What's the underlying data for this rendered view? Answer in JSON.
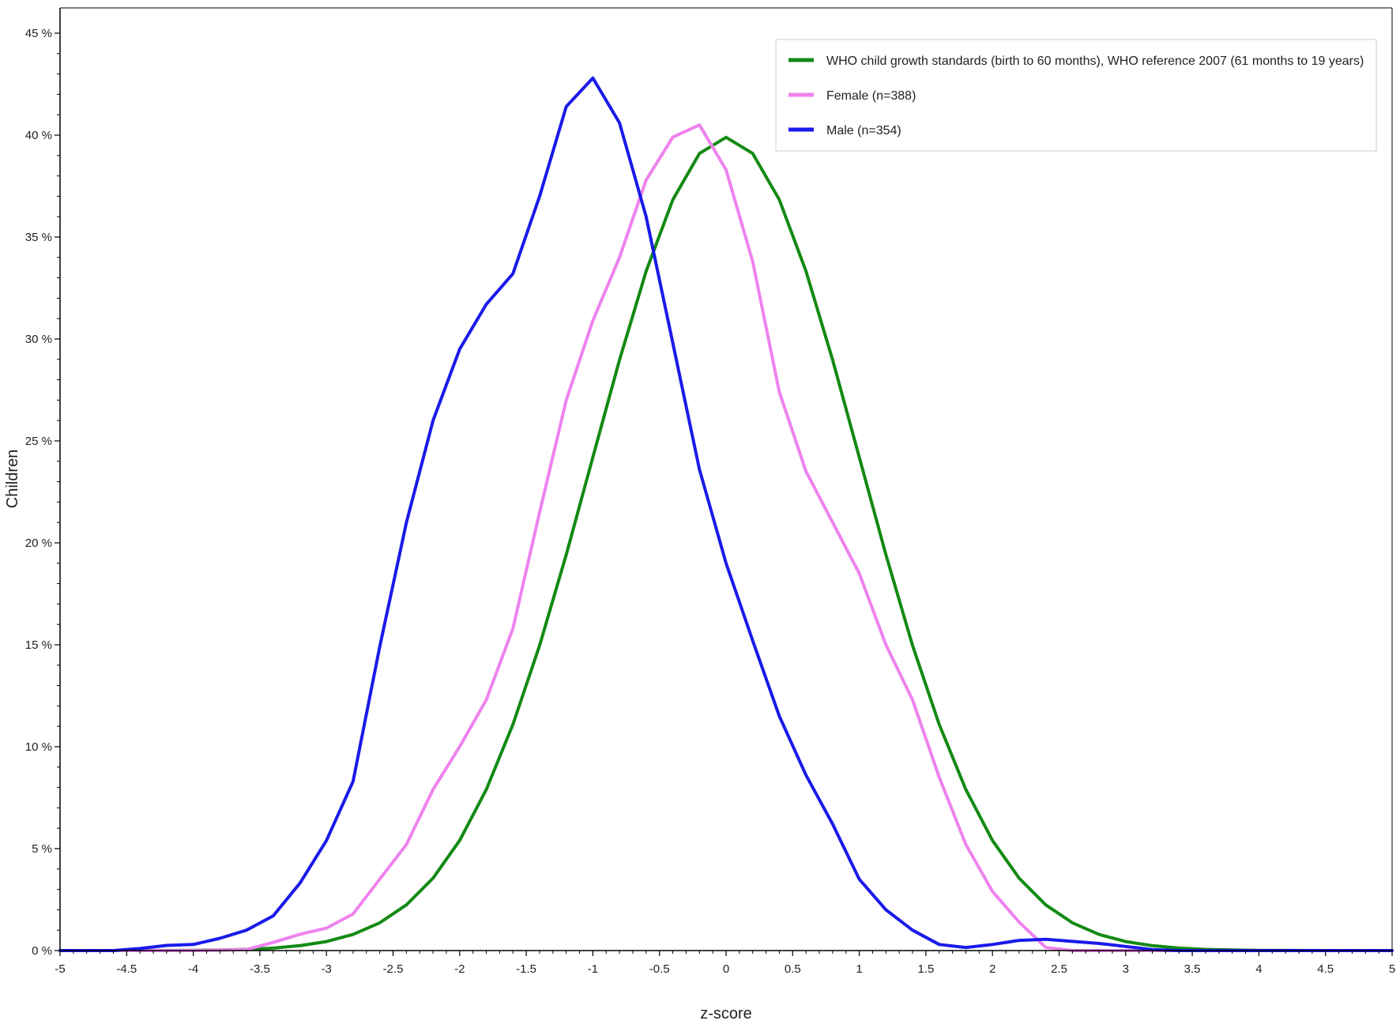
{
  "chart_data": {
    "type": "line",
    "xlabel": "z-score",
    "ylabel": "Children",
    "xlim": [
      -5,
      5
    ],
    "ylim": [
      0,
      45
    ],
    "x_ticks": [
      "-5",
      "-4.5",
      "-4",
      "-3.5",
      "-3",
      "-2.5",
      "-2",
      "-1.5",
      "-1",
      "-0.5",
      "0",
      "0.5",
      "1",
      "1.5",
      "2",
      "2.5",
      "3",
      "3.5",
      "4",
      "4.5",
      "5"
    ],
    "y_ticks": [
      "0 %",
      "5 %",
      "10 %",
      "15 %",
      "20 %",
      "25 %",
      "30 %",
      "35 %",
      "40 %",
      "45 %"
    ],
    "y_tick_values": [
      0,
      5,
      10,
      15,
      20,
      25,
      30,
      35,
      40,
      45
    ],
    "grid": false,
    "legend_position": "top-right",
    "series": [
      {
        "name": "WHO child growth standards (birth to 60 months), WHO reference 2007 (61 months to 19 years)",
        "color": "#138a13",
        "x": [
          -5,
          -4.5,
          -4,
          -3.8,
          -3.6,
          -3.4,
          -3.2,
          -3,
          -2.8,
          -2.6,
          -2.4,
          -2.2,
          -2,
          -1.8,
          -1.6,
          -1.4,
          -1.2,
          -1,
          -0.8,
          -0.6,
          -0.4,
          -0.2,
          0,
          0.2,
          0.4,
          0.6,
          0.8,
          1,
          1.2,
          1.4,
          1.6,
          1.8,
          2,
          2.2,
          2.4,
          2.6,
          2.8,
          3,
          3.2,
          3.4,
          3.6,
          3.8,
          4,
          4.5,
          5
        ],
        "y": [
          0,
          0,
          0.01,
          0.03,
          0.06,
          0.12,
          0.24,
          0.44,
          0.79,
          1.36,
          2.24,
          3.55,
          5.4,
          7.9,
          11.09,
          14.97,
          19.42,
          24.2,
          28.97,
          33.32,
          36.83,
          39.1,
          39.89,
          39.1,
          36.83,
          33.32,
          28.97,
          24.2,
          19.42,
          14.97,
          11.09,
          7.9,
          5.4,
          3.55,
          2.24,
          1.36,
          0.79,
          0.44,
          0.24,
          0.12,
          0.06,
          0.03,
          0.01,
          0,
          0
        ]
      },
      {
        "name": "Female (n=388)",
        "color": "#ee82ee",
        "x": [
          -5,
          -4,
          -3.6,
          -3.4,
          -3.2,
          -3,
          -2.8,
          -2.6,
          -2.4,
          -2.2,
          -2,
          -1.8,
          -1.6,
          -1.4,
          -1.2,
          -1,
          -0.8,
          -0.6,
          -0.4,
          -0.2,
          0,
          0.2,
          0.4,
          0.6,
          0.8,
          1,
          1.2,
          1.4,
          1.6,
          1.8,
          2,
          2.2,
          2.4,
          2.6,
          2.8,
          3,
          3.5,
          4,
          5
        ],
        "y": [
          0,
          0,
          0.05,
          0.4,
          0.8,
          1.1,
          1.8,
          3.5,
          5.2,
          7.9,
          10,
          12.3,
          15.8,
          21.5,
          27,
          30.9,
          34,
          37.8,
          39.9,
          40.5,
          38.3,
          33.8,
          27.4,
          23.5,
          21,
          18.5,
          15,
          12.3,
          8.5,
          5.2,
          2.9,
          1.4,
          0.15,
          0,
          0,
          0,
          0,
          0,
          0
        ]
      },
      {
        "name": "Male (n=354)",
        "color": "#1a1aea",
        "x": [
          -5,
          -4.6,
          -4.4,
          -4.2,
          -4,
          -3.8,
          -3.6,
          -3.4,
          -3.2,
          -3,
          -2.8,
          -2.6,
          -2.4,
          -2.2,
          -2,
          -1.8,
          -1.6,
          -1.4,
          -1.2,
          -1,
          -0.8,
          -0.6,
          -0.4,
          -0.2,
          0,
          0.2,
          0.4,
          0.6,
          0.8,
          1,
          1.2,
          1.4,
          1.6,
          1.8,
          2,
          2.2,
          2.4,
          2.6,
          2.8,
          3,
          3.2,
          3.4,
          4,
          5
        ],
        "y": [
          0,
          0,
          0.1,
          0.25,
          0.3,
          0.6,
          1,
          1.7,
          3.3,
          5.4,
          8.3,
          14.9,
          21,
          26,
          29.5,
          31.7,
          33.2,
          37,
          41.4,
          42.8,
          40.6,
          36,
          29.8,
          23.6,
          19,
          15.2,
          11.5,
          8.6,
          6.2,
          3.5,
          2,
          1,
          0.3,
          0.15,
          0.3,
          0.5,
          0.55,
          0.45,
          0.35,
          0.2,
          0.05,
          0,
          0,
          0
        ]
      }
    ]
  }
}
